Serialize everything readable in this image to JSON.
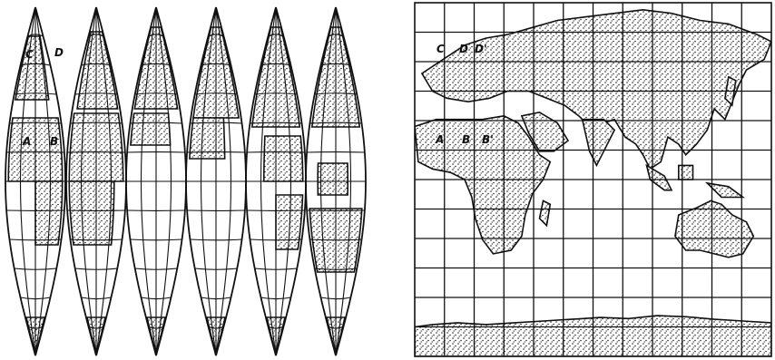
{
  "colors": {
    "ink": "#111111",
    "paper": "#ffffff"
  },
  "left_map": {
    "labels": [
      {
        "text": "C",
        "name": "label-c-gores"
      },
      {
        "text": "D",
        "name": "label-d-gores"
      },
      {
        "text": "A",
        "name": "label-a-gores"
      },
      {
        "text": "B",
        "name": "label-b-gores"
      }
    ]
  },
  "right_map": {
    "labels": [
      {
        "text": "C",
        "name": "label-c-grid"
      },
      {
        "text": "D",
        "name": "label-d-grid"
      },
      {
        "text": "D'",
        "name": "label-d-prime-grid"
      },
      {
        "text": "A",
        "name": "label-a-grid"
      },
      {
        "text": "B",
        "name": "label-b-grid"
      },
      {
        "text": "B'",
        "name": "label-b-prime-grid"
      }
    ]
  }
}
